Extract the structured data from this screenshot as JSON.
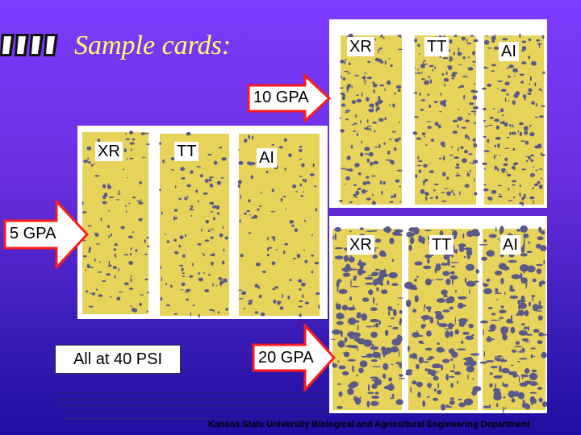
{
  "title": "Sample cards:",
  "panels": {
    "top_right": {
      "labels": [
        "XR",
        "TT",
        "AI"
      ]
    },
    "left": {
      "labels": [
        "XR",
        "TT",
        "AI"
      ]
    },
    "bottom_right": {
      "labels": [
        "XR",
        "TT",
        "AI"
      ]
    }
  },
  "arrows": {
    "gpa10": "10 GPA",
    "gpa5": "5 GPA",
    "gpa20": "20 GPA"
  },
  "note": "All at 40 PSI",
  "footer": "Kansas State University Biological and Agricultural Engineering Department",
  "colors": {
    "card": "#e7d35a",
    "spot": "#5a5a8a",
    "arrow": "#ff1a1a",
    "title": "#ffff66"
  }
}
